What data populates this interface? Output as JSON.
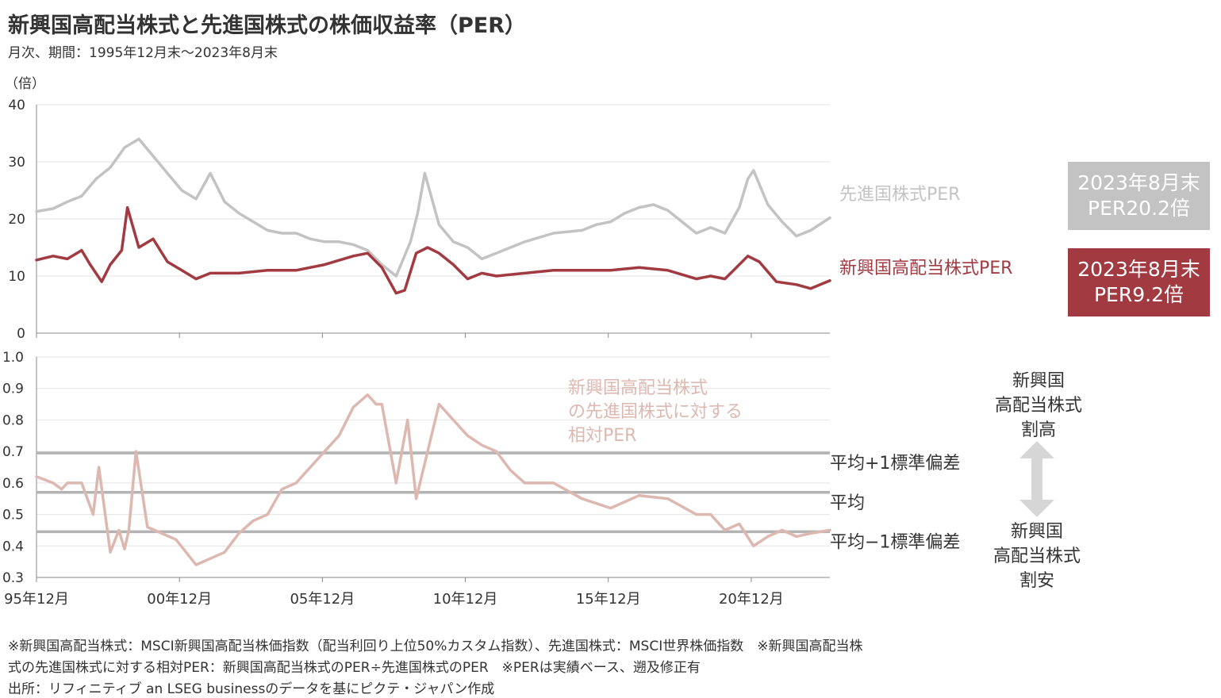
{
  "title": "新興国高配当株式と先進国株式の株価収益率（PER）",
  "subtitle": "月次、期間：1995年12月末～2023年8月末",
  "colors": {
    "developed": "#c3c3c3",
    "emerging": "#a23a42",
    "relative": "#ddb8b0",
    "band": "#b3b3b3",
    "grid": "#e3e3e3"
  },
  "chart_data": [
    {
      "type": "line",
      "ylabel": "（倍）",
      "ylim": [
        0,
        40
      ],
      "yticks": [
        "0",
        "10",
        "20",
        "30",
        "40"
      ],
      "grid": true,
      "series": [
        {
          "name": "先進国株式PER",
          "color": "#c3c3c3",
          "x": [
            1995.92,
            1996.5,
            1997.0,
            1997.5,
            1998.0,
            1998.5,
            1999.0,
            1999.5,
            2000.0,
            2000.5,
            2001.0,
            2001.5,
            2002.0,
            2002.5,
            2003.0,
            2003.5,
            2004.0,
            2004.5,
            2005.0,
            2005.5,
            2006.0,
            2006.5,
            2007.0,
            2007.5,
            2008.0,
            2008.5,
            2009.0,
            2009.25,
            2009.5,
            2010.0,
            2010.5,
            2011.0,
            2011.5,
            2012.0,
            2013.0,
            2014.0,
            2015.0,
            2015.5,
            2016.0,
            2016.5,
            2017.0,
            2017.5,
            2018.0,
            2018.5,
            2019.0,
            2019.5,
            2020.0,
            2020.5,
            2020.8,
            2021.0,
            2021.5,
            2022.0,
            2022.5,
            2023.0,
            2023.67
          ],
          "y": [
            21.3,
            21.8,
            23.0,
            24.0,
            27.0,
            29.0,
            32.5,
            34.0,
            31.0,
            28.0,
            25.0,
            23.5,
            28.0,
            23.0,
            21.0,
            19.5,
            18.0,
            17.5,
            17.5,
            16.5,
            16.0,
            16.0,
            15.5,
            14.5,
            12.0,
            10.0,
            16.0,
            21.0,
            28.0,
            19.0,
            16.0,
            15.0,
            13.0,
            14.0,
            16.0,
            17.5,
            18.0,
            19.0,
            19.5,
            21.0,
            22.0,
            22.5,
            21.5,
            19.5,
            17.5,
            18.5,
            17.5,
            22.0,
            27.0,
            28.5,
            22.5,
            19.5,
            17.0,
            18.0,
            20.2
          ]
        },
        {
          "name": "新興国高配当株式PER",
          "color": "#a23a42",
          "x": [
            1995.92,
            1996.5,
            1997.0,
            1997.5,
            1997.8,
            1998.2,
            1998.5,
            1998.9,
            1999.1,
            1999.5,
            2000.0,
            2000.5,
            2001.0,
            2001.5,
            2002.0,
            2002.5,
            2003.0,
            2004.0,
            2005.0,
            2006.0,
            2007.0,
            2007.5,
            2008.0,
            2008.5,
            2008.8,
            2009.2,
            2009.6,
            2010.0,
            2010.5,
            2011.0,
            2011.5,
            2012.0,
            2013.0,
            2014.0,
            2015.0,
            2016.0,
            2017.0,
            2018.0,
            2019.0,
            2019.5,
            2020.0,
            2020.4,
            2020.8,
            2021.2,
            2021.8,
            2022.5,
            2023.0,
            2023.67
          ],
          "y": [
            12.8,
            13.5,
            13.0,
            14.5,
            12.0,
            9.0,
            12.0,
            14.5,
            22.0,
            15.0,
            16.5,
            12.5,
            11.0,
            9.5,
            10.5,
            10.5,
            10.5,
            11.0,
            11.0,
            12.0,
            13.5,
            14.0,
            11.5,
            7.0,
            7.5,
            14.0,
            15.0,
            14.0,
            12.0,
            9.5,
            10.5,
            10.0,
            10.5,
            11.0,
            11.0,
            11.0,
            11.5,
            11.0,
            9.5,
            10.0,
            9.5,
            11.5,
            13.5,
            12.5,
            9.0,
            8.5,
            7.8,
            9.2
          ]
        }
      ],
      "labels": [
        "先進国株式PER",
        "新興国高配当株式PER"
      ],
      "boxes": [
        {
          "line1": "2023年8月末",
          "line2": "PER20.2倍"
        },
        {
          "line1": "2023年8月末",
          "line2": "PER9.2倍"
        }
      ]
    },
    {
      "type": "line",
      "ylim": [
        0.3,
        1.0
      ],
      "yticks": [
        "0.3",
        "0.4",
        "0.5",
        "0.6",
        "0.7",
        "0.8",
        "0.9",
        "1.0"
      ],
      "xlim": [
        1995.92,
        2023.67
      ],
      "xticks": [
        {
          "label": "95年12月",
          "x": 1995.92
        },
        {
          "label": "00年12月",
          "x": 2000.92
        },
        {
          "label": "05年12月",
          "x": 2005.92
        },
        {
          "label": "10年12月",
          "x": 2010.92
        },
        {
          "label": "15年12月",
          "x": 2015.92
        },
        {
          "label": "20年12月",
          "x": 2020.92
        }
      ],
      "grid": true,
      "series": [
        {
          "name": "新興国高配当株式の先進国株式に対する相対PER",
          "color": "#ddb8b0",
          "x": [
            1995.92,
            1996.5,
            1996.8,
            1997.0,
            1997.5,
            1997.9,
            1998.1,
            1998.5,
            1998.8,
            1999.0,
            1999.15,
            1999.4,
            1999.8,
            2000.3,
            2000.8,
            2001.5,
            2002.0,
            2002.5,
            2003.0,
            2003.5,
            2004.0,
            2004.5,
            2005.0,
            2005.5,
            2006.0,
            2006.5,
            2007.0,
            2007.5,
            2007.8,
            2008.0,
            2008.5,
            2008.9,
            2009.2,
            2009.6,
            2010.0,
            2010.5,
            2011.0,
            2011.5,
            2012.0,
            2012.5,
            2013.0,
            2014.0,
            2015.0,
            2016.0,
            2017.0,
            2018.0,
            2019.0,
            2019.5,
            2020.0,
            2020.5,
            2021.0,
            2021.5,
            2022.0,
            2022.5,
            2023.0,
            2023.67
          ],
          "y": [
            0.62,
            0.6,
            0.58,
            0.6,
            0.6,
            0.5,
            0.65,
            0.38,
            0.45,
            0.39,
            0.45,
            0.7,
            0.46,
            0.44,
            0.42,
            0.34,
            0.36,
            0.38,
            0.44,
            0.48,
            0.5,
            0.58,
            0.6,
            0.65,
            0.7,
            0.75,
            0.84,
            0.88,
            0.85,
            0.85,
            0.6,
            0.8,
            0.55,
            0.7,
            0.85,
            0.8,
            0.75,
            0.72,
            0.7,
            0.64,
            0.6,
            0.6,
            0.55,
            0.52,
            0.56,
            0.55,
            0.5,
            0.5,
            0.45,
            0.47,
            0.4,
            0.43,
            0.45,
            0.43,
            0.44,
            0.45
          ]
        }
      ],
      "bands": [
        {
          "label": "平均+1標準偏差",
          "value": 0.695
        },
        {
          "label": "平均",
          "value": 0.57
        },
        {
          "label": "平均−1標準偏差",
          "value": 0.445
        }
      ],
      "series_label": [
        "新興国高配当株式",
        "の先進国株式に対する",
        "相対PER"
      ],
      "side_high": [
        "新興国",
        "高配当株式",
        "割高"
      ],
      "side_low": [
        "新興国",
        "高配当株式",
        "割安"
      ]
    }
  ],
  "notes": [
    "※新興国高配当株式：MSCI新興国高配当株価指数（配当利回り上位50%カスタム指数）、先進国株式：MSCI世界株価指数　※新興国高配当株",
    "式の先進国株式に対する相対PER：新興国高配当株式のPER÷先進国株式のPER　※PERは実績ベース、遡及修正有",
    "出所：リフィニティブ an LSEG businessのデータを基にピクテ・ジャパン作成"
  ]
}
